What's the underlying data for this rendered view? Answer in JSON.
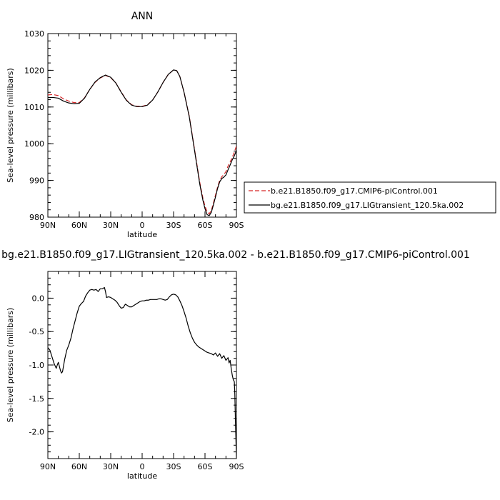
{
  "chart_data": [
    {
      "type": "line",
      "title": "ANN",
      "xlabel": "latitude",
      "ylabel": "Sea-level pressure (millibars)",
      "xlim": [
        90,
        -90
      ],
      "ylim": [
        980,
        1030
      ],
      "x_ticks": [
        {
          "value": 90,
          "label": "90N"
        },
        {
          "value": 60,
          "label": "60N"
        },
        {
          "value": 30,
          "label": "30N"
        },
        {
          "value": 0,
          "label": "0"
        },
        {
          "value": -30,
          "label": "30S"
        },
        {
          "value": -60,
          "label": "60S"
        },
        {
          "value": -90,
          "label": "90S"
        }
      ],
      "y_ticks": [
        980,
        990,
        1000,
        1010,
        1020,
        1030
      ],
      "legend_position": "right",
      "series": [
        {
          "name": "b.e21.B1850.f09_g17.CMIP6-piControl.001",
          "color": "#d62728",
          "dash": "dashed",
          "x": [
            90,
            85,
            80,
            75,
            70,
            65,
            60,
            55,
            50,
            45,
            40,
            35,
            30,
            25,
            20,
            15,
            10,
            5,
            0,
            -5,
            -10,
            -15,
            -20,
            -25,
            -30,
            -33,
            -36,
            -40,
            -45,
            -50,
            -55,
            -58,
            -60,
            -62,
            -64,
            -66,
            -68,
            -70,
            -72,
            -74,
            -76,
            -78,
            -80,
            -82,
            -84,
            -86,
            -88,
            -90
          ],
          "y": [
            1013.3,
            1013.4,
            1013.1,
            1012.2,
            1011.6,
            1011.2,
            1011.2,
            1012.5,
            1014.8,
            1016.7,
            1017.9,
            1018.6,
            1018.0,
            1016.5,
            1014.1,
            1011.9,
            1010.6,
            1010.2,
            1010.2,
            1010.6,
            1011.9,
            1014.1,
            1016.7,
            1018.9,
            1020.1,
            1019.9,
            1018.3,
            1014.0,
            1007.5,
            998.5,
            989.5,
            985.2,
            983.0,
            981.5,
            980.9,
            981.8,
            983.8,
            986.0,
            988.2,
            990.0,
            991.0,
            991.6,
            992.4,
            993.9,
            995.0,
            996.3,
            997.7,
            999.4
          ]
        },
        {
          "name": "bg.e21.B1850.f09_g17.LIGtransient_120.5ka.002",
          "color": "#000000",
          "dash": "solid",
          "x": [
            90,
            85,
            80,
            75,
            70,
            65,
            60,
            55,
            50,
            45,
            40,
            35,
            30,
            25,
            20,
            15,
            10,
            5,
            0,
            -5,
            -10,
            -15,
            -20,
            -25,
            -30,
            -33,
            -36,
            -40,
            -45,
            -50,
            -55,
            -58,
            -60,
            -62,
            -64,
            -66,
            -68,
            -70,
            -72,
            -74,
            -76,
            -78,
            -80,
            -82,
            -84,
            -86,
            -88,
            -90
          ],
          "y": [
            1012.6,
            1012.6,
            1012.4,
            1011.6,
            1011.1,
            1010.9,
            1011.0,
            1012.4,
            1014.8,
            1016.8,
            1018.0,
            1018.7,
            1018.1,
            1016.5,
            1014.0,
            1011.8,
            1010.5,
            1010.1,
            1010.1,
            1010.5,
            1011.9,
            1014.1,
            1016.7,
            1018.9,
            1020.1,
            1019.9,
            1018.3,
            1014.0,
            1007.3,
            998.2,
            989.0,
            984.6,
            982.3,
            980.7,
            980.4,
            981.3,
            983.3,
            985.5,
            987.8,
            989.6,
            990.5,
            990.9,
            991.5,
            992.9,
            994.2,
            995.6,
            996.7,
            998.2
          ]
        }
      ]
    },
    {
      "type": "line",
      "title": "bg.e21.B1850.f09_g17.LIGtransient_120.5ka.002 - b.e21.B1850.f09_g17.CMIP6-piControl.001",
      "xlabel": "latitude",
      "ylabel": "Sea-level pressure (millibars)",
      "xlim": [
        90,
        -90
      ],
      "ylim": [
        -2.4,
        0.4
      ],
      "x_ticks": [
        {
          "value": 90,
          "label": "90N"
        },
        {
          "value": 60,
          "label": "60N"
        },
        {
          "value": 30,
          "label": "30N"
        },
        {
          "value": 0,
          "label": "0"
        },
        {
          "value": -30,
          "label": "30S"
        },
        {
          "value": -60,
          "label": "60S"
        },
        {
          "value": -90,
          "label": "90S"
        }
      ],
      "y_ticks": [
        {
          "value": 0.0,
          "label": "0.0"
        },
        {
          "value": -0.5,
          "label": "-0.5"
        },
        {
          "value": -1.0,
          "label": "-1.0"
        },
        {
          "value": -1.5,
          "label": "-1.5"
        },
        {
          "value": -2.0,
          "label": "-2.0"
        }
      ],
      "series": [
        {
          "color": "#000000",
          "dash": "solid",
          "x": [
            90,
            88,
            86,
            84,
            82,
            81,
            80,
            79,
            78,
            77,
            76,
            74,
            72,
            70,
            68,
            66,
            64,
            62,
            60,
            58,
            56,
            54,
            52,
            50,
            48,
            46,
            44,
            42,
            40,
            38,
            36,
            35,
            34,
            32,
            30,
            28,
            26,
            24,
            22,
            20,
            18,
            16,
            14,
            12,
            10,
            8,
            6,
            4,
            2,
            0,
            -2,
            -4,
            -6,
            -8,
            -10,
            -12,
            -14,
            -16,
            -18,
            -20,
            -22,
            -24,
            -26,
            -28,
            -30,
            -32,
            -34,
            -36,
            -38,
            -40,
            -42,
            -44,
            -46,
            -48,
            -50,
            -52,
            -54,
            -56,
            -58,
            -60,
            -62,
            -64,
            -66,
            -68,
            -70,
            -72,
            -74,
            -76,
            -78,
            -80,
            -82,
            -83,
            -84,
            -85,
            -86,
            -87,
            -88,
            -88.5,
            -89,
            -89.5,
            -90
          ],
          "y": [
            -0.74,
            -0.78,
            -0.88,
            -0.98,
            -1.05,
            -1.0,
            -0.96,
            -1.02,
            -1.08,
            -1.12,
            -1.1,
            -0.92,
            -0.78,
            -0.7,
            -0.6,
            -0.46,
            -0.34,
            -0.22,
            -0.12,
            -0.08,
            -0.05,
            0.03,
            0.08,
            0.12,
            0.13,
            0.12,
            0.13,
            0.1,
            0.14,
            0.14,
            0.16,
            0.1,
            0.01,
            0.02,
            0.01,
            -0.01,
            -0.03,
            -0.06,
            -0.11,
            -0.15,
            -0.14,
            -0.09,
            -0.11,
            -0.13,
            -0.13,
            -0.11,
            -0.09,
            -0.07,
            -0.05,
            -0.04,
            -0.04,
            -0.03,
            -0.03,
            -0.02,
            -0.02,
            -0.02,
            -0.02,
            -0.01,
            -0.01,
            -0.02,
            -0.03,
            -0.02,
            0.02,
            0.05,
            0.06,
            0.05,
            0.02,
            -0.04,
            -0.11,
            -0.2,
            -0.3,
            -0.42,
            -0.52,
            -0.6,
            -0.66,
            -0.7,
            -0.73,
            -0.75,
            -0.77,
            -0.79,
            -0.81,
            -0.82,
            -0.83,
            -0.85,
            -0.82,
            -0.87,
            -0.83,
            -0.9,
            -0.86,
            -0.93,
            -0.89,
            -0.97,
            -0.93,
            -1.05,
            -1.15,
            -1.22,
            -1.25,
            -1.45,
            -1.8,
            -2.1,
            -2.4
          ]
        }
      ]
    }
  ]
}
